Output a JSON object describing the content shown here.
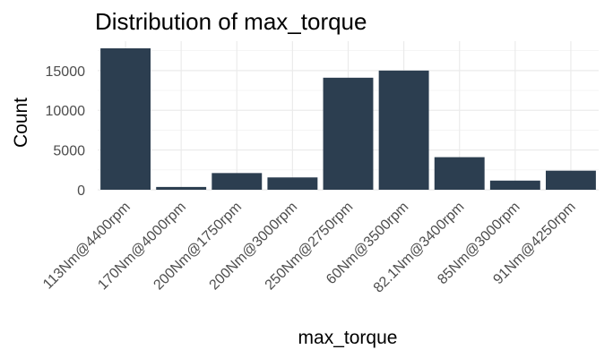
{
  "chart_data": {
    "type": "bar",
    "title": "Distribution of max_torque",
    "xlabel": "max_torque",
    "ylabel": "Count",
    "categories": [
      "113Nm@4400rpm",
      "170Nm@4000rpm",
      "200Nm@1750rpm",
      "200Nm@3000rpm",
      "250Nm@2750rpm",
      "60Nm@3500rpm",
      "82.1Nm@3400rpm",
      "85Nm@3000rpm",
      "91Nm@4250rpm"
    ],
    "values": [
      17800,
      350,
      2100,
      1550,
      14100,
      15000,
      4100,
      1150,
      2400
    ],
    "ylim": [
      0,
      18700
    ],
    "yticks": [
      0,
      5000,
      10000,
      15000
    ],
    "ytick_labels": [
      "0",
      "5000",
      "10000",
      "15000"
    ],
    "bar_color": "#2c3e50",
    "grid": true,
    "legend": "none"
  }
}
